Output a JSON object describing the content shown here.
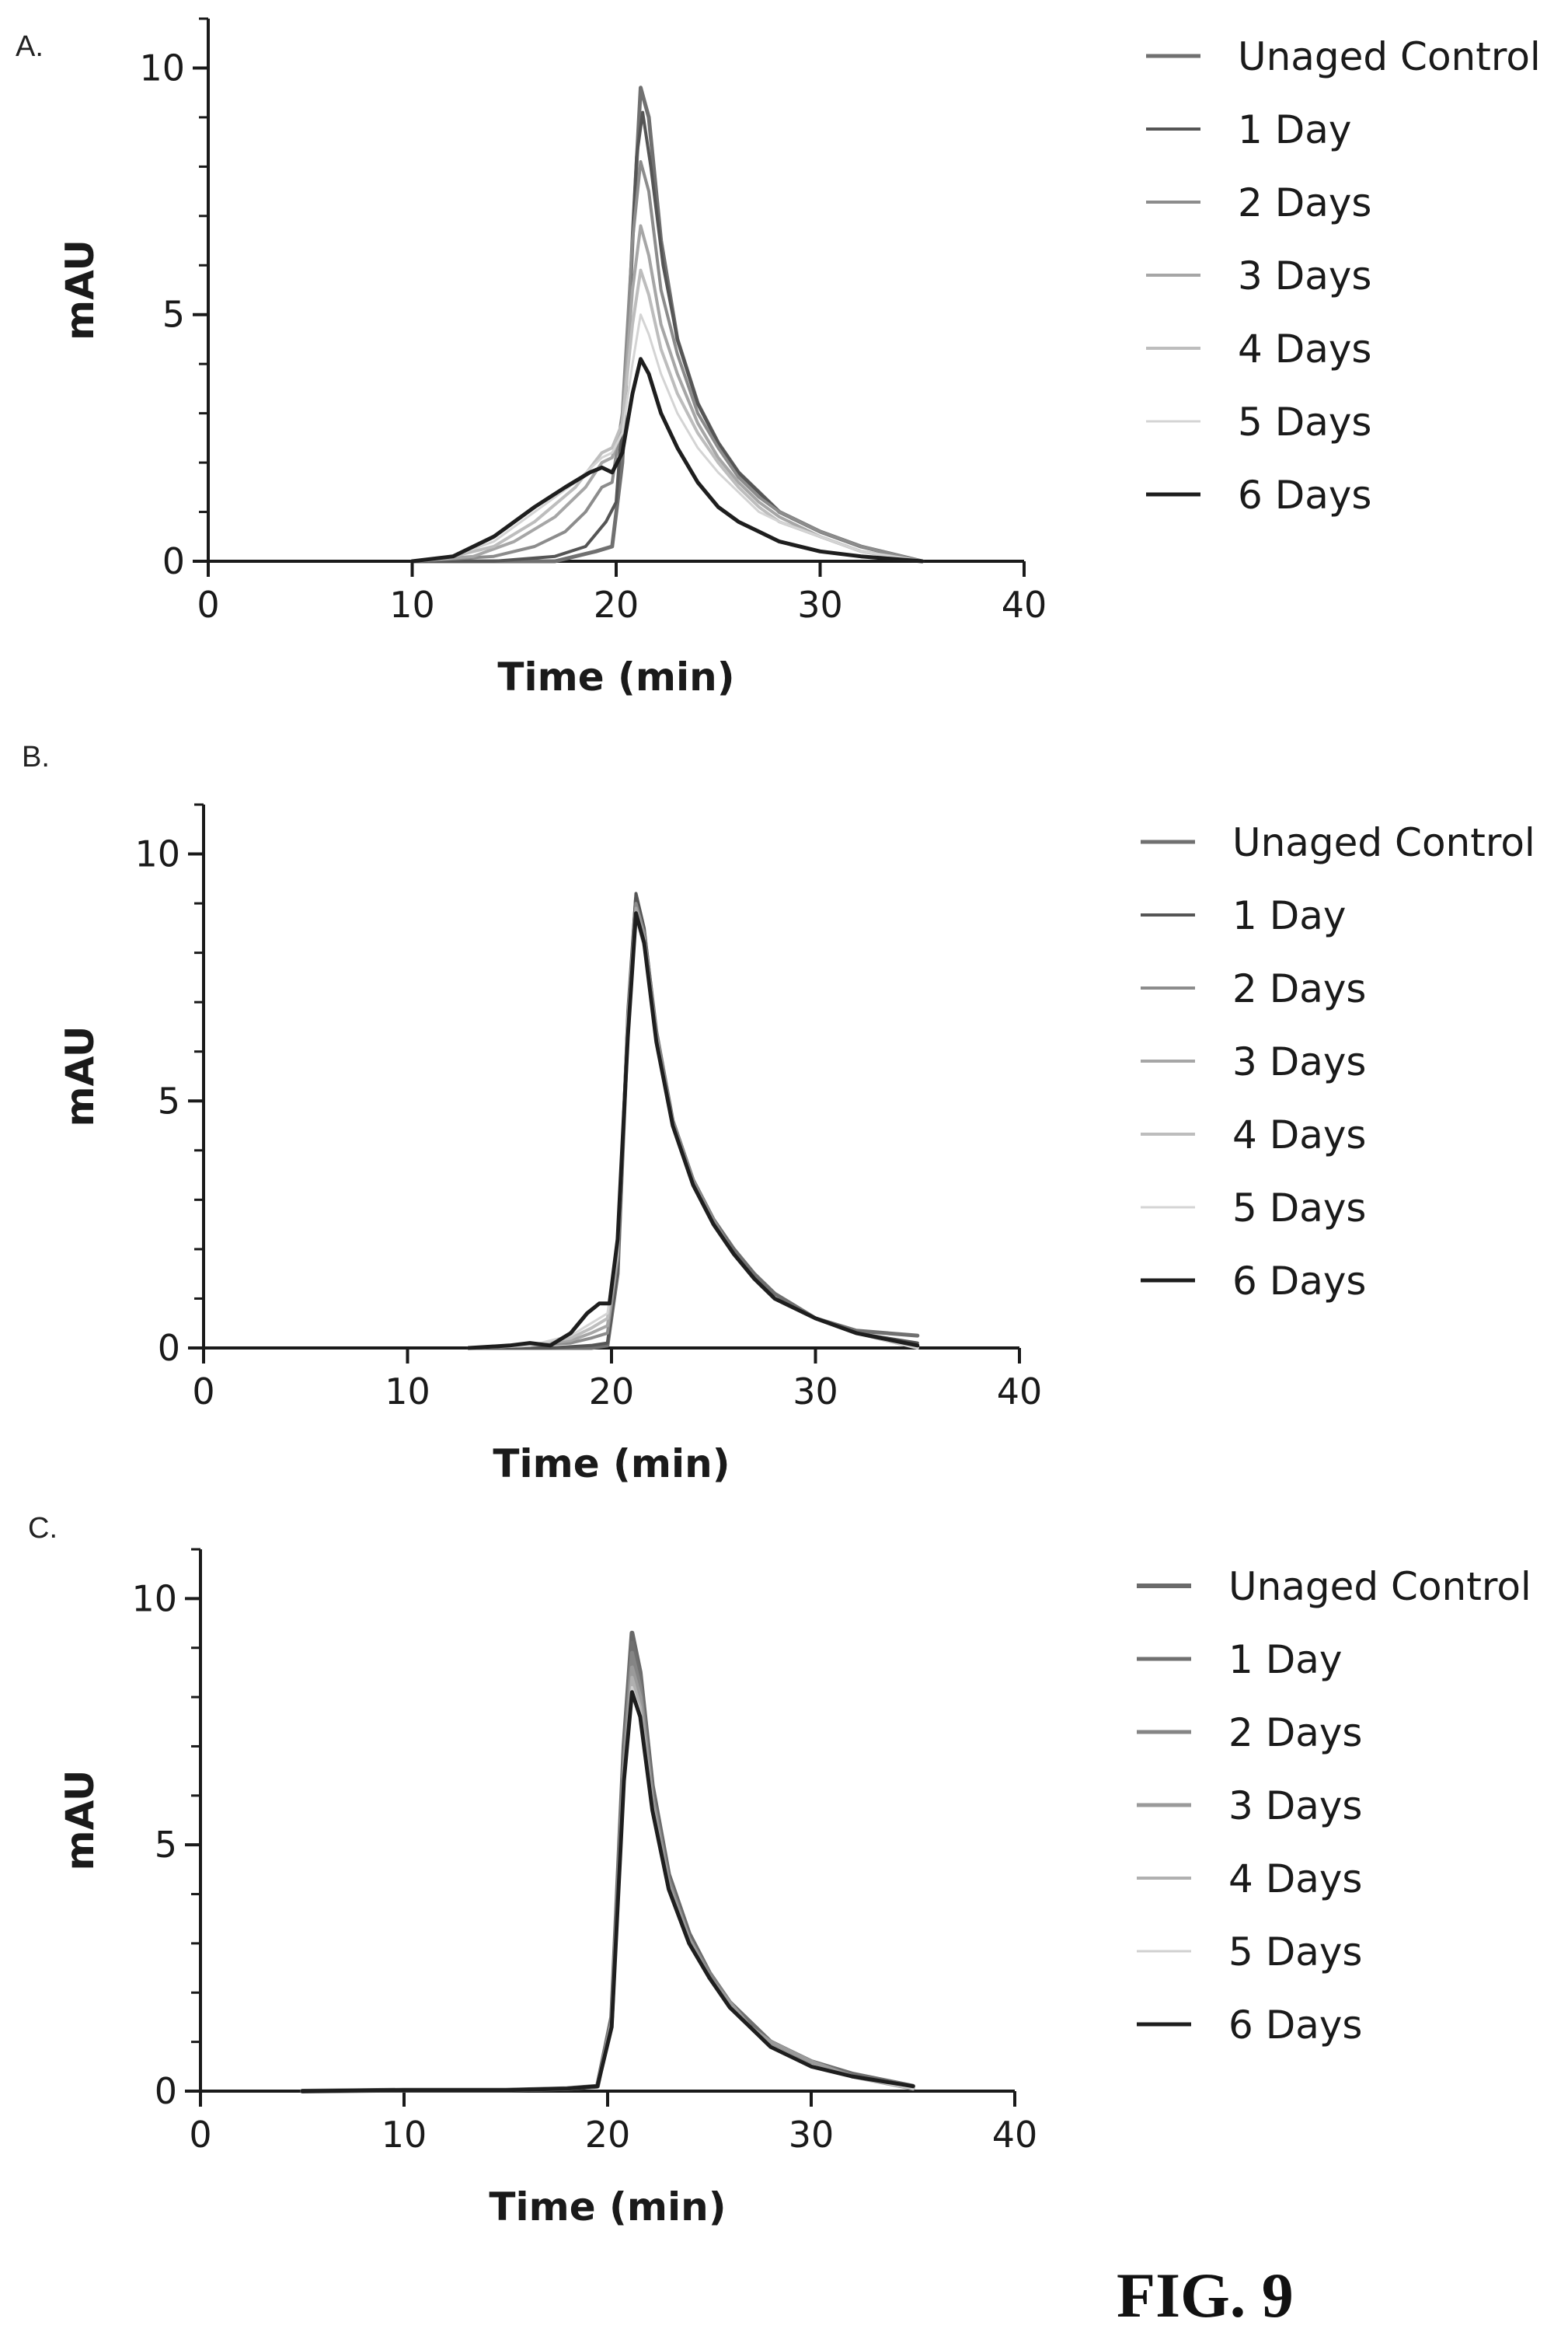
{
  "figure_label": "FIG. 9",
  "chart_data": [
    {
      "panel": "A.",
      "type": "line",
      "xlabel": "Time (min)",
      "ylabel": "mAU",
      "xlim": [
        0,
        40
      ],
      "ylim": [
        0,
        11
      ],
      "xticks": [
        0,
        10,
        20,
        30,
        40
      ],
      "yticks": [
        0,
        5,
        10
      ],
      "legend_position": "right",
      "grid": false,
      "series": [
        {
          "name": "Unaged Control",
          "color": "#707070",
          "width": 5,
          "x": [
            10,
            14,
            17,
            19,
            19.8,
            20.3,
            20.8,
            21.2,
            21.6,
            22.2,
            23,
            24,
            25,
            26,
            27,
            28,
            30,
            32,
            35
          ],
          "y": [
            0,
            0,
            0,
            0.2,
            0.3,
            2.0,
            6.5,
            9.6,
            9.0,
            6.5,
            4.5,
            3.2,
            2.4,
            1.8,
            1.4,
            1.0,
            0.6,
            0.3,
            0
          ]
        },
        {
          "name": "1 Day",
          "color": "#555555",
          "width": 4,
          "x": [
            10,
            14,
            17,
            18.5,
            19.5,
            20,
            20.5,
            21,
            21.3,
            21.7,
            22.3,
            23,
            24,
            25,
            26,
            27,
            28,
            30,
            32,
            35
          ],
          "y": [
            0,
            0,
            0.1,
            0.3,
            0.8,
            1.2,
            4.0,
            8.2,
            9.1,
            8.0,
            6.0,
            4.5,
            3.2,
            2.4,
            1.8,
            1.4,
            1.0,
            0.6,
            0.3,
            0
          ]
        },
        {
          "name": "2 Days",
          "color": "#8c8c8c",
          "width": 4,
          "x": [
            10,
            14,
            16,
            17.5,
            18.5,
            19.3,
            19.8,
            20.3,
            20.8,
            21.2,
            21.6,
            22.2,
            23,
            24,
            25,
            26,
            27,
            28,
            30,
            32,
            35
          ],
          "y": [
            0,
            0.1,
            0.3,
            0.6,
            1.0,
            1.5,
            1.6,
            3.0,
            6.5,
            8.1,
            7.5,
            5.5,
            4.2,
            3.0,
            2.3,
            1.7,
            1.3,
            1.0,
            0.6,
            0.3,
            0
          ]
        },
        {
          "name": "3 Days",
          "color": "#a6a6a6",
          "width": 4,
          "x": [
            10,
            13,
            15,
            17,
            18.5,
            19.3,
            19.8,
            20.3,
            20.8,
            21.2,
            21.6,
            22.2,
            23,
            24,
            25,
            26,
            27,
            28,
            30,
            32,
            35
          ],
          "y": [
            0,
            0.1,
            0.4,
            0.9,
            1.5,
            2.0,
            2.1,
            2.8,
            5.5,
            6.8,
            6.2,
            4.8,
            3.8,
            2.8,
            2.1,
            1.6,
            1.2,
            0.9,
            0.5,
            0.2,
            0
          ]
        },
        {
          "name": "4 Days",
          "color": "#bdbdbd",
          "width": 4,
          "x": [
            10,
            12,
            14,
            16,
            18,
            19.3,
            19.8,
            20.3,
            20.8,
            21.2,
            21.6,
            22.2,
            23,
            24,
            25,
            26,
            27,
            28,
            30,
            32,
            35
          ],
          "y": [
            0,
            0.1,
            0.3,
            0.8,
            1.5,
            2.2,
            2.3,
            2.8,
            4.8,
            5.9,
            5.4,
            4.3,
            3.4,
            2.6,
            2.0,
            1.5,
            1.1,
            0.8,
            0.5,
            0.2,
            0
          ]
        },
        {
          "name": "5 Days",
          "color": "#d4d4d4",
          "width": 3,
          "x": [
            10,
            12,
            14,
            16,
            18,
            19.3,
            19.8,
            20.3,
            20.8,
            21.2,
            21.6,
            22.2,
            23,
            24,
            25,
            26,
            27,
            28,
            30,
            32,
            35
          ],
          "y": [
            0,
            0.1,
            0.4,
            1.0,
            1.6,
            2.1,
            2.2,
            2.6,
            4.0,
            5.0,
            4.6,
            3.8,
            3.0,
            2.3,
            1.8,
            1.4,
            1.0,
            0.8,
            0.5,
            0.2,
            0
          ]
        },
        {
          "name": "6 Days",
          "color": "#1e1e1e",
          "width": 5,
          "x": [
            10,
            12,
            14,
            16,
            17.5,
            18.7,
            19.3,
            19.8,
            20.3,
            20.8,
            21.2,
            21.6,
            22.2,
            23,
            24,
            25,
            26,
            27,
            28,
            30,
            32,
            35
          ],
          "y": [
            0,
            0.1,
            0.5,
            1.1,
            1.5,
            1.8,
            1.9,
            1.8,
            2.2,
            3.4,
            4.1,
            3.8,
            3.0,
            2.3,
            1.6,
            1.1,
            0.8,
            0.6,
            0.4,
            0.2,
            0.1,
            0
          ]
        }
      ]
    },
    {
      "panel": "B.",
      "type": "line",
      "xlabel": "Time (min)",
      "ylabel": "mAU",
      "xlim": [
        0,
        40
      ],
      "ylim": [
        0,
        11
      ],
      "xticks": [
        0,
        10,
        20,
        30,
        40
      ],
      "yticks": [
        0,
        5,
        10
      ],
      "legend_position": "right",
      "grid": false,
      "series": [
        {
          "name": "Unaged Control",
          "color": "#707070",
          "width": 5,
          "x": [
            13,
            17,
            19,
            19.8,
            20.3,
            20.8,
            21.2,
            21.6,
            22.2,
            23,
            24,
            25,
            26,
            27,
            28,
            30,
            32,
            35
          ],
          "y": [
            0,
            0,
            0,
            0.05,
            1.5,
            6.5,
            9.1,
            8.4,
            6.4,
            4.6,
            3.4,
            2.6,
            2.0,
            1.5,
            1.1,
            0.6,
            0.35,
            0.25
          ]
        },
        {
          "name": "1 Day",
          "color": "#555555",
          "width": 4,
          "x": [
            13,
            17,
            19,
            19.8,
            20.3,
            20.8,
            21.2,
            21.6,
            22.2,
            23,
            24,
            25,
            26,
            27,
            28,
            30,
            32,
            35
          ],
          "y": [
            0,
            0,
            0.05,
            0.1,
            1.6,
            6.8,
            9.2,
            8.5,
            6.4,
            4.6,
            3.4,
            2.6,
            1.9,
            1.4,
            1.0,
            0.6,
            0.3,
            0.1
          ]
        },
        {
          "name": "2 Days",
          "color": "#8c8c8c",
          "width": 4,
          "x": [
            13,
            16,
            18,
            19,
            19.8,
            20.3,
            20.8,
            21.2,
            21.6,
            22.2,
            23,
            24,
            25,
            26,
            27,
            28,
            30,
            32,
            35
          ],
          "y": [
            0,
            0.05,
            0.1,
            0.2,
            0.3,
            1.8,
            6.7,
            9.0,
            8.4,
            6.4,
            4.6,
            3.4,
            2.6,
            1.9,
            1.4,
            1.0,
            0.6,
            0.3,
            0
          ]
        },
        {
          "name": "3 Days",
          "color": "#a6a6a6",
          "width": 4,
          "x": [
            13,
            16,
            18,
            19,
            19.8,
            20.3,
            20.8,
            21.2,
            21.6,
            22.2,
            23,
            24,
            25,
            26,
            27,
            28,
            30,
            32,
            35
          ],
          "y": [
            0,
            0.05,
            0.15,
            0.3,
            0.45,
            1.9,
            6.6,
            8.9,
            8.3,
            6.3,
            4.5,
            3.3,
            2.5,
            1.9,
            1.4,
            1.0,
            0.6,
            0.3,
            0
          ]
        },
        {
          "name": "4 Days",
          "color": "#bdbdbd",
          "width": 4,
          "x": [
            13,
            16,
            18,
            19,
            19.8,
            20.3,
            20.8,
            21.2,
            21.6,
            22.2,
            23,
            24,
            25,
            26,
            27,
            28,
            30,
            32,
            35
          ],
          "y": [
            0,
            0.05,
            0.2,
            0.4,
            0.6,
            2.0,
            6.5,
            8.8,
            8.2,
            6.2,
            4.5,
            3.3,
            2.5,
            1.9,
            1.4,
            1.0,
            0.6,
            0.3,
            0
          ]
        },
        {
          "name": "5 Days",
          "color": "#d4d4d4",
          "width": 3,
          "x": [
            13,
            16,
            18,
            19,
            19.8,
            20.3,
            20.8,
            21.2,
            21.6,
            22.2,
            23,
            24,
            25,
            26,
            27,
            28,
            30,
            32,
            35
          ],
          "y": [
            0,
            0.05,
            0.25,
            0.5,
            0.7,
            2.1,
            6.4,
            8.7,
            8.1,
            6.2,
            4.5,
            3.3,
            2.5,
            1.9,
            1.4,
            1.0,
            0.6,
            0.3,
            0
          ]
        },
        {
          "name": "6 Days",
          "color": "#1e1e1e",
          "width": 5,
          "x": [
            13,
            15,
            16,
            17,
            18,
            18.8,
            19.4,
            19.9,
            20.3,
            20.8,
            21.2,
            21.6,
            22.2,
            23,
            24,
            25,
            26,
            27,
            28,
            30,
            32,
            35
          ],
          "y": [
            0,
            0.05,
            0.1,
            0.05,
            0.3,
            0.7,
            0.9,
            0.9,
            2.2,
            6.3,
            8.8,
            8.2,
            6.2,
            4.5,
            3.3,
            2.5,
            1.9,
            1.4,
            1.0,
            0.6,
            0.3,
            0.05
          ]
        }
      ]
    },
    {
      "panel": "C.",
      "type": "line",
      "xlabel": "Time (min)",
      "ylabel": "mAU",
      "xlim": [
        0,
        40
      ],
      "ylim": [
        0,
        11
      ],
      "xticks": [
        0,
        10,
        20,
        30,
        40
      ],
      "yticks": [
        0,
        5,
        10
      ],
      "legend_position": "right",
      "grid": false,
      "series": [
        {
          "name": "Unaged Control",
          "color": "#6a6a6a",
          "width": 6,
          "x": [
            5,
            10,
            15,
            18,
            19.5,
            20.2,
            20.8,
            21.2,
            21.6,
            22.2,
            23,
            24,
            25,
            26,
            27,
            28,
            30,
            32,
            35
          ],
          "y": [
            0,
            0.02,
            0.02,
            0.05,
            0.1,
            1.5,
            7.0,
            9.3,
            8.5,
            6.2,
            4.4,
            3.2,
            2.4,
            1.8,
            1.4,
            1.0,
            0.6,
            0.35,
            0.1
          ]
        },
        {
          "name": "1 Day",
          "color": "#707070",
          "width": 5,
          "x": [
            5,
            10,
            15,
            18,
            19.5,
            20.2,
            20.8,
            21.2,
            21.6,
            22.2,
            23,
            24,
            25,
            26,
            27,
            28,
            30,
            32,
            35
          ],
          "y": [
            0,
            0.02,
            0.02,
            0.05,
            0.1,
            1.5,
            6.9,
            9.1,
            8.4,
            6.1,
            4.3,
            3.1,
            2.4,
            1.8,
            1.4,
            1.0,
            0.6,
            0.35,
            0.1
          ]
        },
        {
          "name": "2 Days",
          "color": "#858585",
          "width": 5,
          "x": [
            5,
            10,
            15,
            18,
            19.5,
            20.2,
            20.8,
            21.2,
            21.6,
            22.2,
            23,
            24,
            25,
            26,
            27,
            28,
            30,
            32,
            35
          ],
          "y": [
            0,
            0.02,
            0.02,
            0.05,
            0.1,
            1.4,
            6.7,
            8.9,
            8.2,
            6.0,
            4.3,
            3.1,
            2.4,
            1.8,
            1.3,
            1.0,
            0.6,
            0.3,
            0.1
          ]
        },
        {
          "name": "3 Days",
          "color": "#9a9a9a",
          "width": 5,
          "x": [
            5,
            10,
            15,
            18,
            19.5,
            20.2,
            20.8,
            21.2,
            21.6,
            22.2,
            23,
            24,
            25,
            26,
            27,
            28,
            30,
            32,
            35
          ],
          "y": [
            0,
            0.02,
            0.02,
            0.05,
            0.1,
            1.4,
            6.5,
            8.6,
            8.0,
            5.9,
            4.2,
            3.1,
            2.3,
            1.8,
            1.3,
            1.0,
            0.6,
            0.3,
            0.05
          ]
        },
        {
          "name": "4 Days",
          "color": "#b0b0b0",
          "width": 4,
          "x": [
            5,
            10,
            15,
            18,
            19.5,
            20.2,
            20.8,
            21.2,
            21.6,
            22.2,
            23,
            24,
            25,
            26,
            27,
            28,
            30,
            32,
            35
          ],
          "y": [
            0,
            0.02,
            0.02,
            0.05,
            0.1,
            1.3,
            6.3,
            8.4,
            7.8,
            5.8,
            4.1,
            3.0,
            2.3,
            1.7,
            1.3,
            0.9,
            0.5,
            0.3,
            0.05
          ]
        },
        {
          "name": "5 Days",
          "color": "#d0d0d0",
          "width": 3,
          "x": [
            5,
            10,
            15,
            18,
            19.5,
            20.2,
            20.8,
            21.2,
            21.6,
            22.2,
            23,
            24,
            25,
            26,
            27,
            28,
            30,
            32,
            35
          ],
          "y": [
            0,
            0.02,
            0.02,
            0.05,
            0.1,
            1.3,
            6.2,
            8.2,
            7.7,
            5.7,
            4.1,
            3.0,
            2.3,
            1.7,
            1.3,
            0.9,
            0.5,
            0.3,
            0.05
          ]
        },
        {
          "name": "6 Days",
          "color": "#1e1e1e",
          "width": 5,
          "x": [
            5,
            10,
            15,
            18,
            19.5,
            20.2,
            20.8,
            21.2,
            21.6,
            22.2,
            23,
            24,
            25,
            26,
            27,
            28,
            30,
            32,
            35
          ],
          "y": [
            0,
            0.02,
            0.02,
            0.05,
            0.1,
            1.3,
            6.3,
            8.1,
            7.6,
            5.7,
            4.1,
            3.0,
            2.3,
            1.7,
            1.3,
            0.9,
            0.5,
            0.3,
            0.1
          ]
        }
      ]
    }
  ]
}
